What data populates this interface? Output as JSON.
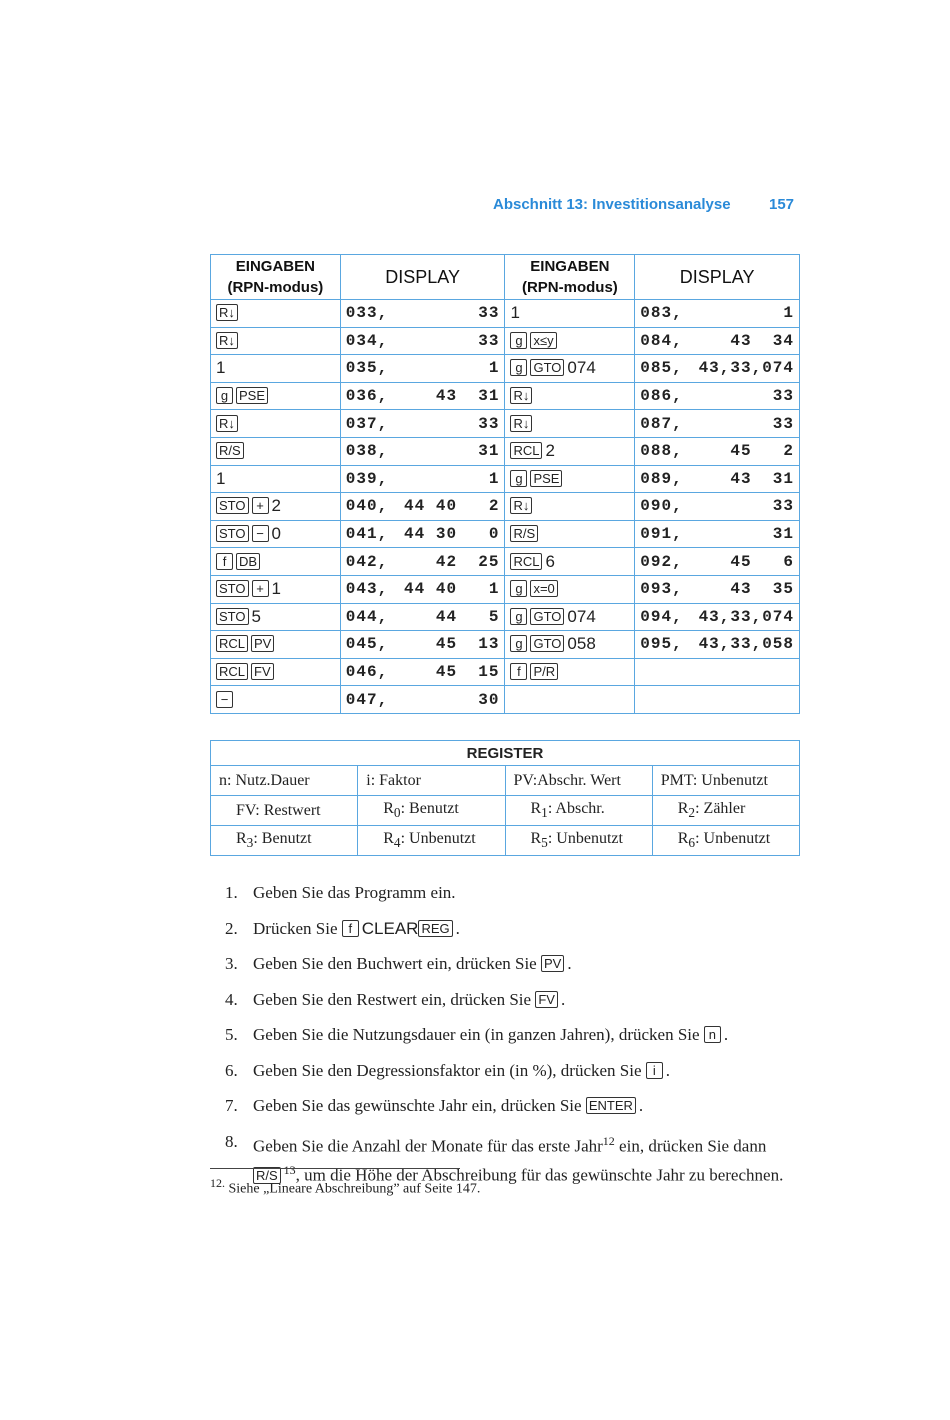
{
  "header": {
    "section": "Abschnitt 13: Investitionsanalyse",
    "page": "157"
  },
  "program_table": {
    "headers": {
      "inputs_line1": "EINGABEN",
      "inputs_line2": "(RPN-modus)",
      "display": "DISPLAY"
    },
    "left": [
      {
        "input": [
          {
            "key": "R↓"
          }
        ],
        "addr": "033,",
        "code": "33"
      },
      {
        "input": [
          {
            "key": "R↓"
          }
        ],
        "addr": "034,",
        "code": "33"
      },
      {
        "input": [
          {
            "text": "1"
          }
        ],
        "addr": "035,",
        "code": "1"
      },
      {
        "input": [
          {
            "key": "g"
          },
          {
            "key": "PSE"
          }
        ],
        "addr": "036,",
        "code": "43  31"
      },
      {
        "input": [
          {
            "key": "R↓"
          }
        ],
        "addr": "037,",
        "code": "33"
      },
      {
        "input": [
          {
            "key": "R/S"
          }
        ],
        "addr": "038,",
        "code": "31"
      },
      {
        "input": [
          {
            "text": "1"
          }
        ],
        "addr": "039,",
        "code": "1"
      },
      {
        "input": [
          {
            "key": "STO"
          },
          {
            "key": "+"
          },
          {
            "text": "2"
          }
        ],
        "addr": "040,",
        "code": "44 40   2"
      },
      {
        "input": [
          {
            "key": "STO"
          },
          {
            "key": "−"
          },
          {
            "text": "0"
          }
        ],
        "addr": "041,",
        "code": "44 30   0"
      },
      {
        "input": [
          {
            "key": "f"
          },
          {
            "key": "DB"
          }
        ],
        "addr": "042,",
        "code": "42  25"
      },
      {
        "input": [
          {
            "key": "STO"
          },
          {
            "key": "+"
          },
          {
            "text": "1"
          }
        ],
        "addr": "043,",
        "code": "44 40   1"
      },
      {
        "input": [
          {
            "key": "STO"
          },
          {
            "text": "5"
          }
        ],
        "addr": "044,",
        "code": "44   5"
      },
      {
        "input": [
          {
            "key": "RCL"
          },
          {
            "key": "PV"
          }
        ],
        "addr": "045,",
        "code": "45  13"
      },
      {
        "input": [
          {
            "key": "RCL"
          },
          {
            "key": "FV"
          }
        ],
        "addr": "046,",
        "code": "45  15"
      },
      {
        "input": [
          {
            "key": "−"
          }
        ],
        "addr": "047,",
        "code": "30"
      }
    ],
    "right": [
      {
        "input": [
          {
            "text": "1"
          }
        ],
        "addr": "083,",
        "code": "1"
      },
      {
        "input": [
          {
            "key": "g"
          },
          {
            "key": "x≤y"
          }
        ],
        "addr": "084,",
        "code": "43  34"
      },
      {
        "input": [
          {
            "key": "g"
          },
          {
            "key": "GTO"
          },
          {
            "text": "074"
          }
        ],
        "addr": "085,",
        "code": "43,33,074"
      },
      {
        "input": [
          {
            "key": "R↓"
          }
        ],
        "addr": "086,",
        "code": "33"
      },
      {
        "input": [
          {
            "key": "R↓"
          }
        ],
        "addr": "087,",
        "code": "33"
      },
      {
        "input": [
          {
            "key": "RCL"
          },
          {
            "text": "2"
          }
        ],
        "addr": "088,",
        "code": "45   2"
      },
      {
        "input": [
          {
            "key": "g"
          },
          {
            "key": "PSE"
          }
        ],
        "addr": "089,",
        "code": "43  31"
      },
      {
        "input": [
          {
            "key": "R↓"
          }
        ],
        "addr": "090,",
        "code": "33"
      },
      {
        "input": [
          {
            "key": "R/S"
          }
        ],
        "addr": "091,",
        "code": "31"
      },
      {
        "input": [
          {
            "key": "RCL"
          },
          {
            "text": "6"
          }
        ],
        "addr": "092,",
        "code": "45   6"
      },
      {
        "input": [
          {
            "key": "g"
          },
          {
            "key": "x=0"
          }
        ],
        "addr": "093,",
        "code": "43  35"
      },
      {
        "input": [
          {
            "key": "g"
          },
          {
            "key": "GTO"
          },
          {
            "text": "074"
          }
        ],
        "addr": "094,",
        "code": "43,33,074"
      },
      {
        "input": [
          {
            "key": "g"
          },
          {
            "key": "GTO"
          },
          {
            "text": "058"
          }
        ],
        "addr": "095,",
        "code": "43,33,058"
      },
      {
        "input": [
          {
            "key": "f"
          },
          {
            "key": "P/R"
          }
        ],
        "addr": "",
        "code": ""
      },
      {
        "input": [],
        "addr": "",
        "code": ""
      }
    ]
  },
  "register_table": {
    "title": "REGISTER",
    "rows": [
      [
        {
          "t": "n: Nutz.Dauer"
        },
        {
          "t": "i: Faktor"
        },
        {
          "t": "PV:Abschr. Wert"
        },
        {
          "t": "PMT: Unbenutzt"
        }
      ],
      [
        {
          "t": "FV: Restwert"
        },
        {
          "r": "R",
          "s": "0",
          "t": ": Benutzt"
        },
        {
          "r": "R",
          "s": "1",
          "t": ": Abschr."
        },
        {
          "r": "R",
          "s": "2",
          "t": ": Zähler"
        }
      ],
      [
        {
          "r": "R",
          "s": "3",
          "t": ": Benutzt"
        },
        {
          "r": "R",
          "s": "4",
          "t": ": Unbenutzt"
        },
        {
          "r": "R",
          "s": "5",
          "t": ": Unbenutzt"
        },
        {
          "r": "R",
          "s": "6",
          "t": ": Unbenutzt"
        }
      ]
    ]
  },
  "steps": [
    {
      "n": "1.",
      "parts": [
        {
          "text": "Geben Sie das Programm ein."
        }
      ]
    },
    {
      "n": "2.",
      "parts": [
        {
          "text": "Drücken Sie "
        },
        {
          "key": "f"
        },
        {
          "big": "CLEAR"
        },
        {
          "key": "REG"
        },
        {
          "text": "."
        }
      ]
    },
    {
      "n": "3.",
      "parts": [
        {
          "text": "Geben Sie den Buchwert ein, drücken Sie "
        },
        {
          "key": "PV"
        },
        {
          "text": "."
        }
      ]
    },
    {
      "n": "4.",
      "parts": [
        {
          "text": "Geben Sie den Restwert ein, drücken Sie "
        },
        {
          "key": "FV"
        },
        {
          "text": "."
        }
      ]
    },
    {
      "n": "5.",
      "parts": [
        {
          "text": "Geben Sie die Nutzungsdauer ein (in ganzen Jahren), drücken Sie "
        },
        {
          "key": "n"
        },
        {
          "text": "."
        }
      ]
    },
    {
      "n": "6.",
      "parts": [
        {
          "text": "Geben Sie den Degressionsfaktor ein (in %), drücken Sie "
        },
        {
          "key": "i"
        },
        {
          "text": "."
        }
      ]
    },
    {
      "n": "7.",
      "parts": [
        {
          "text": "Geben Sie das gewünschte Jahr ein, drücken Sie "
        },
        {
          "key": "ENTER"
        },
        {
          "text": "."
        }
      ]
    },
    {
      "n": "8.",
      "parts": [
        {
          "text": "Geben Sie die Anzahl der Monate für das erste Jahr"
        },
        {
          "sup": "12"
        },
        {
          "text": " ein, drücken Sie dann "
        },
        {
          "key": "R/S"
        },
        {
          "sup": "13"
        },
        {
          "text": ", um die Höhe der Abschreibung für das gewünschte Jahr zu berechnen."
        }
      ]
    }
  ],
  "footnote": {
    "mark": "12.",
    "text": " Siehe „Lineare Abschreibung” auf Seite 147."
  }
}
